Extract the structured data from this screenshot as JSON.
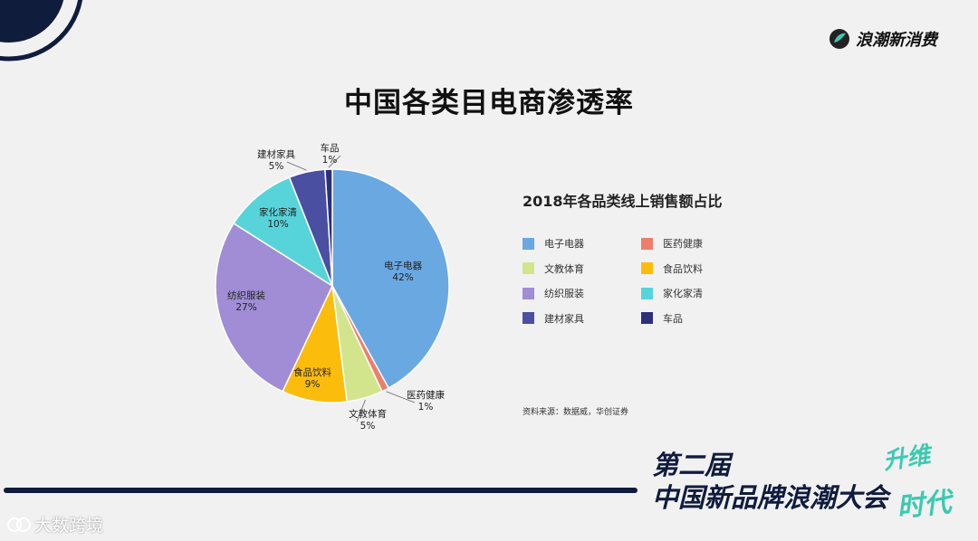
{
  "brand": {
    "name": "浪潮新消费",
    "logo_icon": "brand-leaf-logo-icon"
  },
  "page": {
    "title": "中国各类目电商渗透率"
  },
  "chart_data": {
    "type": "pie",
    "title": "2018年各品类线上销售额占比",
    "series": [
      {
        "name": "电子电器",
        "value": 42,
        "label": "42%",
        "color": "#6aa8e2"
      },
      {
        "name": "医药健康",
        "value": 1,
        "label": "1%",
        "color": "#ef7d6b"
      },
      {
        "name": "文教体育",
        "value": 5,
        "label": "5%",
        "color": "#d3e58c"
      },
      {
        "name": "食品饮料",
        "value": 9,
        "label": "9%",
        "color": "#fcbc0c"
      },
      {
        "name": "纺织服装",
        "value": 27,
        "label": "27%",
        "color": "#a08dd5"
      },
      {
        "name": "家化家清",
        "value": 10,
        "label": "10%",
        "color": "#57d4da"
      },
      {
        "name": "建材家具",
        "value": 5,
        "label": "5%",
        "color": "#4a4fa2"
      },
      {
        "name": "车品",
        "value": 1,
        "label": "1%",
        "color": "#2c2f7c"
      }
    ],
    "legend_placement": "right",
    "legend_order": [
      "电子电器",
      "医药健康",
      "文教体育",
      "食品饮料",
      "纺织服装",
      "家化家清",
      "建材家具",
      "车品"
    ]
  },
  "source": {
    "text": "资料来源：数据威，华创证券"
  },
  "event": {
    "line1": "第二届",
    "line2": "中国新品牌浪潮大会",
    "slogan1": "升维",
    "slogan2": "时代"
  },
  "watermark": {
    "text": "大数跨境",
    "icon": "watermark-logo-icon"
  },
  "colors": {
    "accent_dark": "#101c3c",
    "accent_teal": "#3cc9b0",
    "background": "#f1f1f2"
  }
}
